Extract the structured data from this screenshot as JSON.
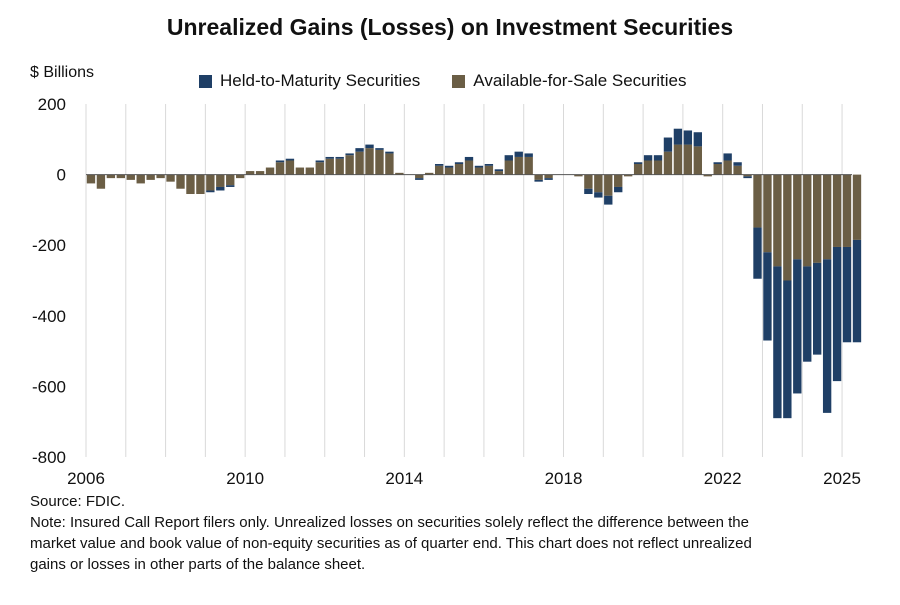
{
  "chart_data": {
    "type": "bar",
    "stacked": true,
    "title": "Unrealized Gains (Losses) on Investment Securities",
    "ylabel": "$ Billions",
    "xlabel": "",
    "ylim": [
      -800,
      200
    ],
    "yticks": [
      200,
      0,
      -200,
      -400,
      -600,
      -800
    ],
    "xtick_labels": [
      "2006",
      "2010",
      "2014",
      "2018",
      "2022",
      "2025"
    ],
    "xrange": [
      2006.0,
      2025.25
    ],
    "grid": "vertical",
    "legend": "top",
    "series": [
      {
        "name": "Held-to-Maturity Securities",
        "color": "#1f3f66"
      },
      {
        "name": "Available-for-Sale Securities",
        "color": "#6b5e45"
      }
    ],
    "quarters": [
      "2006Q1",
      "2006Q2",
      "2006Q3",
      "2006Q4",
      "2007Q1",
      "2007Q2",
      "2007Q3",
      "2007Q4",
      "2008Q1",
      "2008Q2",
      "2008Q3",
      "2008Q4",
      "2009Q1",
      "2009Q2",
      "2009Q3",
      "2009Q4",
      "2010Q1",
      "2010Q2",
      "2010Q3",
      "2010Q4",
      "2011Q1",
      "2011Q2",
      "2011Q3",
      "2011Q4",
      "2012Q1",
      "2012Q2",
      "2012Q3",
      "2012Q4",
      "2013Q1",
      "2013Q2",
      "2013Q3",
      "2013Q4",
      "2014Q1",
      "2014Q2",
      "2014Q3",
      "2014Q4",
      "2015Q1",
      "2015Q2",
      "2015Q3",
      "2015Q4",
      "2016Q1",
      "2016Q2",
      "2016Q3",
      "2016Q4",
      "2017Q1",
      "2017Q2",
      "2017Q3",
      "2017Q4",
      "2018Q1",
      "2018Q2",
      "2018Q3",
      "2018Q4",
      "2019Q1",
      "2019Q2",
      "2019Q3",
      "2019Q4",
      "2020Q1",
      "2020Q2",
      "2020Q3",
      "2020Q4",
      "2021Q1",
      "2021Q2",
      "2021Q3",
      "2021Q4",
      "2022Q1",
      "2022Q2",
      "2022Q3",
      "2022Q4",
      "2023Q1",
      "2023Q2",
      "2023Q3",
      "2023Q4",
      "2024Q1",
      "2024Q2",
      "2024Q3",
      "2024Q4",
      "2025Q1",
      "2025Q2"
    ],
    "afs": [
      -25,
      -40,
      -10,
      -10,
      -15,
      -25,
      -15,
      -10,
      -20,
      -40,
      -55,
      -55,
      -45,
      -35,
      -30,
      -10,
      10,
      10,
      20,
      35,
      40,
      20,
      20,
      35,
      45,
      45,
      55,
      65,
      75,
      70,
      60,
      5,
      0,
      -10,
      5,
      25,
      20,
      30,
      40,
      20,
      25,
      10,
      40,
      50,
      50,
      -15,
      -10,
      0,
      0,
      -5,
      -40,
      -50,
      -60,
      -35,
      -5,
      30,
      40,
      40,
      65,
      85,
      85,
      80,
      -5,
      30,
      40,
      25,
      -5,
      -150,
      -220,
      -260,
      -300,
      -240,
      -260,
      -250,
      -240,
      -205,
      -205,
      -185
    ],
    "htm": [
      0,
      0,
      0,
      0,
      0,
      0,
      0,
      0,
      0,
      0,
      0,
      0,
      -5,
      -10,
      -5,
      0,
      0,
      0,
      0,
      5,
      5,
      0,
      0,
      5,
      5,
      5,
      5,
      10,
      10,
      5,
      5,
      0,
      0,
      -5,
      0,
      5,
      5,
      5,
      10,
      5,
      5,
      5,
      15,
      15,
      10,
      -5,
      -5,
      0,
      0,
      0,
      -15,
      -15,
      -25,
      -15,
      0,
      5,
      15,
      15,
      40,
      45,
      40,
      40,
      0,
      5,
      20,
      10,
      -5,
      -145,
      -250,
      -430,
      -390,
      -380,
      -270,
      -260,
      -435,
      -380,
      -270,
      -290
    ],
    "totals": [
      -25,
      -40,
      -10,
      -10,
      -15,
      -25,
      -15,
      -10,
      -20,
      -40,
      -55,
      -55,
      -50,
      -45,
      -35,
      -10,
      10,
      10,
      20,
      40,
      45,
      20,
      20,
      40,
      50,
      50,
      60,
      75,
      85,
      75,
      65,
      5,
      0,
      -15,
      5,
      30,
      25,
      35,
      50,
      25,
      30,
      15,
      55,
      65,
      60,
      -20,
      -15,
      0,
      0,
      -5,
      -55,
      -65,
      -85,
      -50,
      -5,
      35,
      55,
      55,
      105,
      130,
      125,
      120,
      -5,
      35,
      60,
      35,
      -10,
      -295,
      -470,
      -690,
      -690,
      -620,
      -530,
      -510,
      -675,
      -585,
      -475,
      -475
    ]
  },
  "notes": {
    "source": "Source: FDIC.",
    "note_lines": [
      "Note: Insured Call Report filers only. Unrealized losses on securities solely reflect the difference between the",
      "market value and book value of non-equity securities as of quarter end. This chart does not reflect unrealized",
      "gains or losses in other parts of the balance sheet."
    ]
  }
}
